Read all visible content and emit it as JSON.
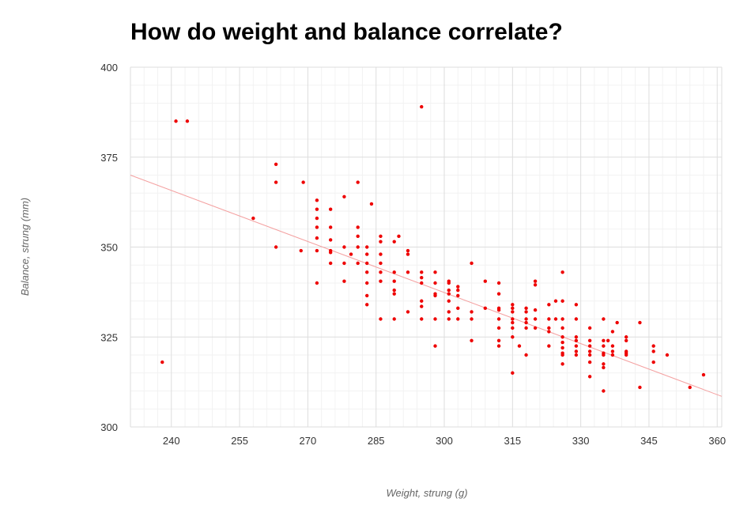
{
  "chart_data": {
    "type": "scatter",
    "title": "How do weight and balance correlate?",
    "xlabel": "Weight, strung (g)",
    "ylabel": "Balance, strung (mm)",
    "xlim": [
      231,
      361
    ],
    "ylim": [
      300,
      400
    ],
    "x_ticks": [
      240,
      255,
      270,
      285,
      300,
      315,
      330,
      345,
      360
    ],
    "y_ticks": [
      300,
      325,
      350,
      375,
      400
    ],
    "x_minor_step": 3,
    "y_minor_step": 5,
    "point_color": "#ee0000",
    "trendline_color": "#f4a0a0",
    "major_grid_color": "#dddddd",
    "minor_grid_color": "#f2f2f2",
    "trendline": {
      "x0": 231,
      "y0": 370,
      "x1": 361,
      "y1": 308.5
    },
    "points": [
      [
        238,
        318
      ],
      [
        241,
        385
      ],
      [
        243.5,
        385
      ],
      [
        258,
        358
      ],
      [
        263,
        373
      ],
      [
        263,
        368
      ],
      [
        263,
        350
      ],
      [
        268.5,
        349
      ],
      [
        269,
        368
      ],
      [
        272,
        363
      ],
      [
        272,
        360.5
      ],
      [
        272,
        358
      ],
      [
        272,
        355.5
      ],
      [
        272,
        352.5
      ],
      [
        272,
        349
      ],
      [
        272,
        340
      ],
      [
        275,
        360.5
      ],
      [
        275,
        355.5
      ],
      [
        275,
        352
      ],
      [
        275,
        349
      ],
      [
        275,
        348.5
      ],
      [
        275,
        345.5
      ],
      [
        278,
        364
      ],
      [
        278,
        350
      ],
      [
        278,
        345.5
      ],
      [
        278,
        340.5
      ],
      [
        279.5,
        348
      ],
      [
        281,
        368
      ],
      [
        281,
        355.5
      ],
      [
        281,
        353
      ],
      [
        281,
        350
      ],
      [
        281,
        345.5
      ],
      [
        283,
        350
      ],
      [
        283,
        348
      ],
      [
        283,
        345.5
      ],
      [
        283,
        343
      ],
      [
        283,
        340
      ],
      [
        283,
        336.5
      ],
      [
        283,
        334
      ],
      [
        284,
        362
      ],
      [
        286,
        353
      ],
      [
        286,
        351.5
      ],
      [
        286,
        348
      ],
      [
        286,
        345.5
      ],
      [
        286,
        343
      ],
      [
        286,
        340.5
      ],
      [
        286,
        330
      ],
      [
        289,
        351.5
      ],
      [
        289,
        343
      ],
      [
        289,
        340.5
      ],
      [
        289,
        338
      ],
      [
        289,
        337
      ],
      [
        289,
        330
      ],
      [
        290,
        353
      ],
      [
        292,
        349
      ],
      [
        292,
        348
      ],
      [
        292,
        343
      ],
      [
        292,
        332
      ],
      [
        295,
        389
      ],
      [
        295,
        343
      ],
      [
        295,
        341.5
      ],
      [
        295,
        340
      ],
      [
        295,
        335
      ],
      [
        295,
        333.5
      ],
      [
        295,
        330
      ],
      [
        298,
        343
      ],
      [
        298,
        340
      ],
      [
        298,
        337
      ],
      [
        298,
        336.5
      ],
      [
        298,
        330
      ],
      [
        298,
        322.5
      ],
      [
        301,
        340.5
      ],
      [
        301,
        340
      ],
      [
        301,
        338
      ],
      [
        301,
        337
      ],
      [
        301,
        335
      ],
      [
        301,
        332
      ],
      [
        301,
        330
      ],
      [
        303,
        339
      ],
      [
        303,
        338
      ],
      [
        303,
        336.5
      ],
      [
        303,
        333
      ],
      [
        303,
        330
      ],
      [
        306,
        345.5
      ],
      [
        306,
        332
      ],
      [
        306,
        330
      ],
      [
        306,
        324
      ],
      [
        309,
        340.5
      ],
      [
        309,
        333
      ],
      [
        312,
        340
      ],
      [
        312,
        337
      ],
      [
        312,
        333
      ],
      [
        312,
        332.5
      ],
      [
        312,
        330
      ],
      [
        312,
        327.5
      ],
      [
        312,
        324
      ],
      [
        312,
        322.5
      ],
      [
        315,
        334
      ],
      [
        315,
        333
      ],
      [
        315,
        332
      ],
      [
        315,
        330
      ],
      [
        315,
        329
      ],
      [
        315,
        327.5
      ],
      [
        315,
        325
      ],
      [
        315,
        315
      ],
      [
        316.5,
        322.5
      ],
      [
        318,
        330
      ],
      [
        318,
        327.5
      ],
      [
        318,
        333
      ],
      [
        318,
        332
      ],
      [
        318,
        329
      ],
      [
        318,
        320
      ],
      [
        320,
        340.5
      ],
      [
        320,
        339.5
      ],
      [
        320,
        332.5
      ],
      [
        320,
        330
      ],
      [
        320,
        327.5
      ],
      [
        323,
        334
      ],
      [
        323,
        330
      ],
      [
        323,
        327.5
      ],
      [
        323,
        326.5
      ],
      [
        323,
        322.5
      ],
      [
        324.5,
        335
      ],
      [
        324.5,
        330
      ],
      [
        326,
        343
      ],
      [
        326,
        335
      ],
      [
        326,
        330
      ],
      [
        326,
        327.5
      ],
      [
        326,
        325
      ],
      [
        326,
        323.5
      ],
      [
        326,
        322
      ],
      [
        326,
        320.5
      ],
      [
        326,
        320
      ],
      [
        326,
        317.5
      ],
      [
        329,
        334
      ],
      [
        329,
        330
      ],
      [
        329,
        325
      ],
      [
        329,
        324
      ],
      [
        329,
        322.5
      ],
      [
        329,
        321
      ],
      [
        329,
        320
      ],
      [
        332,
        327.5
      ],
      [
        332,
        324
      ],
      [
        332,
        322.5
      ],
      [
        332,
        321
      ],
      [
        332,
        320
      ],
      [
        332,
        318
      ],
      [
        332,
        314
      ],
      [
        335,
        330
      ],
      [
        335,
        324
      ],
      [
        335,
        322.5
      ],
      [
        335,
        320.5
      ],
      [
        335,
        320
      ],
      [
        335,
        317.5
      ],
      [
        335,
        316.5
      ],
      [
        335,
        310
      ],
      [
        336,
        324
      ],
      [
        337,
        326.5
      ],
      [
        337,
        322.5
      ],
      [
        337,
        321
      ],
      [
        337,
        320
      ],
      [
        338,
        329
      ],
      [
        340,
        325
      ],
      [
        340,
        324
      ],
      [
        340,
        321
      ],
      [
        340,
        320.5
      ],
      [
        340,
        320
      ],
      [
        343,
        329
      ],
      [
        343,
        311
      ],
      [
        346,
        322.5
      ],
      [
        346,
        321
      ],
      [
        346,
        318
      ],
      [
        349,
        320
      ],
      [
        354,
        311
      ],
      [
        357,
        314.5
      ]
    ]
  }
}
